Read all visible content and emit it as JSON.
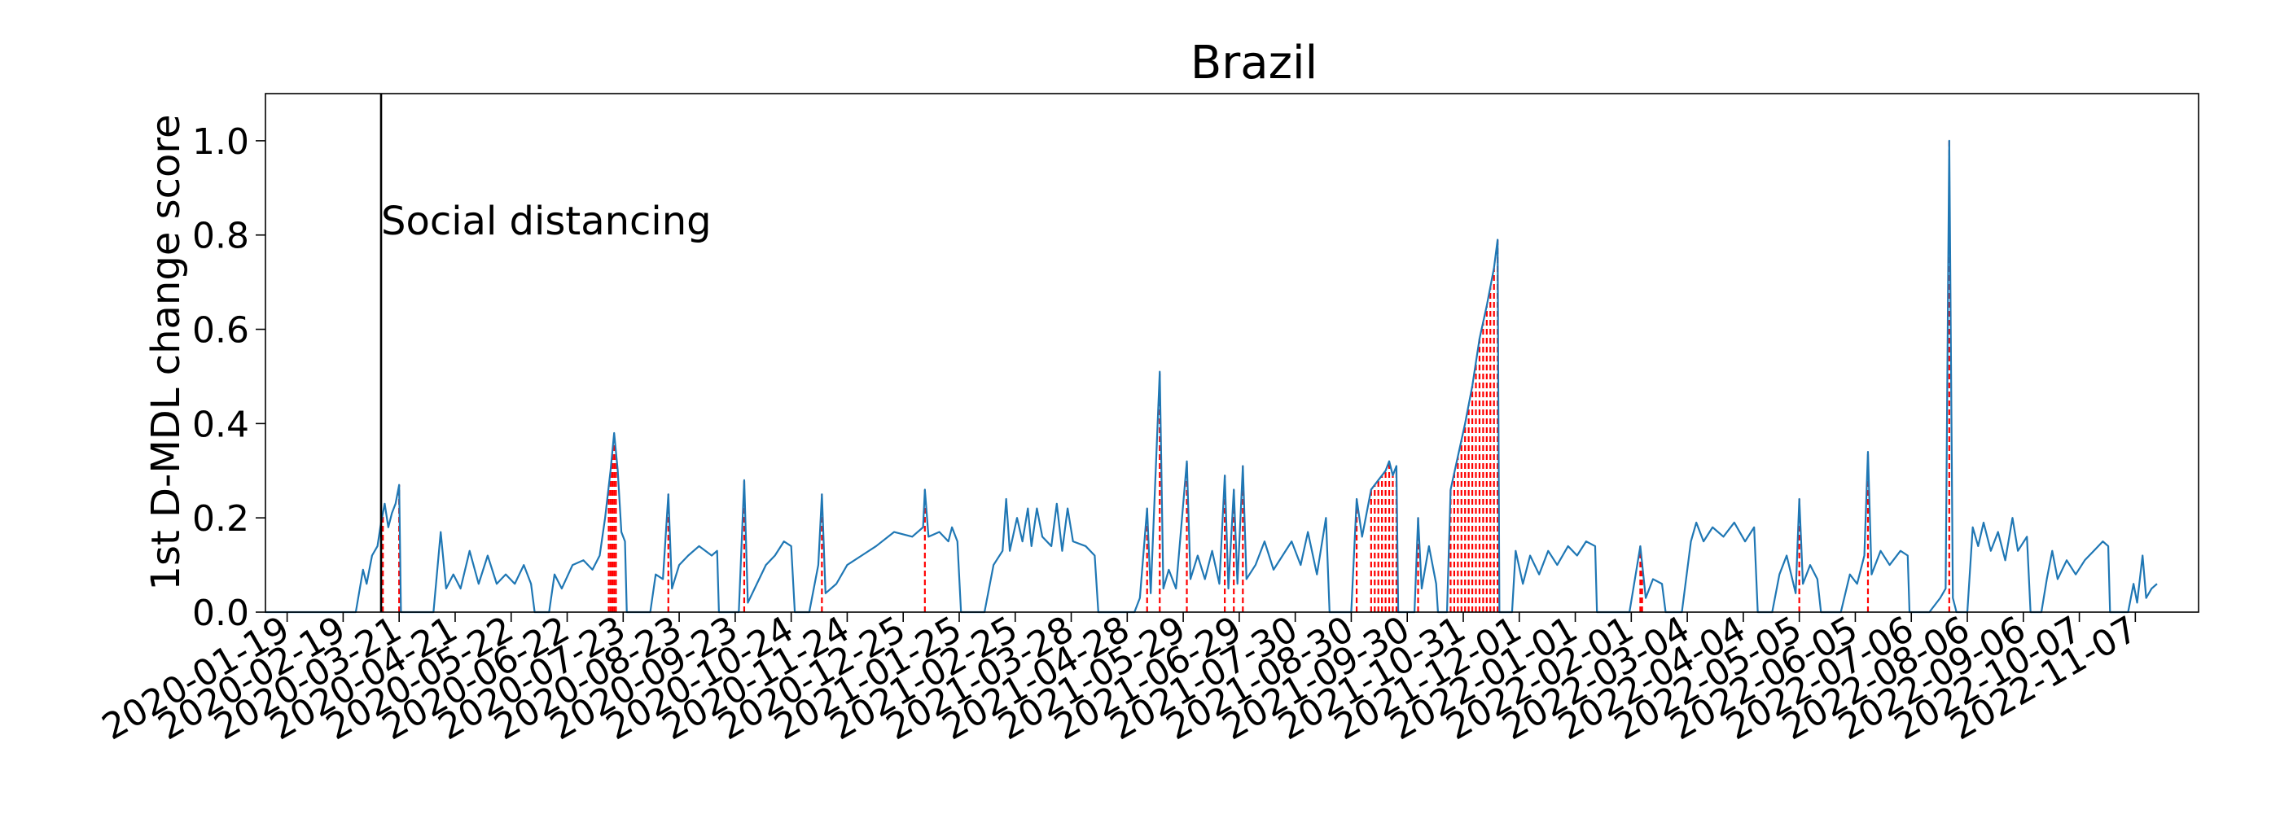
{
  "chart_data": {
    "type": "line",
    "title": "Brazil",
    "xlabel": "",
    "ylabel": "1st D-MDL change score",
    "xlim": [
      "2020-01-07",
      "2022-12-12"
    ],
    "ylim": [
      0,
      1.1
    ],
    "grid": false,
    "x_ticks": [
      "2020-01-19",
      "2020-02-19",
      "2020-03-21",
      "2020-04-21",
      "2020-05-22",
      "2020-06-22",
      "2020-07-23",
      "2020-08-23",
      "2020-09-23",
      "2020-10-24",
      "2020-11-24",
      "2020-12-25",
      "2021-01-25",
      "2021-02-25",
      "2021-03-28",
      "2021-04-28",
      "2021-05-29",
      "2021-06-29",
      "2021-07-30",
      "2021-08-30",
      "2021-09-30",
      "2021-10-31",
      "2021-12-01",
      "2022-01-01",
      "2022-02-01",
      "2022-03-04",
      "2022-04-04",
      "2022-05-05",
      "2022-06-05",
      "2022-07-06",
      "2022-08-06",
      "2022-09-06",
      "2022-10-07",
      "2022-11-07"
    ],
    "y_ticks": [
      "0.0",
      "0.2",
      "0.4",
      "0.6",
      "0.8",
      "1.0"
    ],
    "y_tick_values": [
      0,
      0.2,
      0.4,
      0.6,
      0.8,
      1.0
    ],
    "annotations": [
      {
        "type": "vline",
        "date": "2020-03-11",
        "label": "Social distancing",
        "color": "#000000"
      }
    ],
    "colors": {
      "series": "#1f77b4",
      "change_alarm": "#ff0000"
    },
    "series": [
      {
        "values": [
          [
            "2020-01-07",
            0
          ],
          [
            "2020-02-19",
            0
          ],
          [
            "2020-02-26",
            0
          ],
          [
            "2020-03-01",
            0.09
          ],
          [
            "2020-03-03",
            0.06
          ],
          [
            "2020-03-06",
            0.12
          ],
          [
            "2020-03-09",
            0.14
          ],
          [
            "2020-03-11",
            0.19
          ],
          [
            "2020-03-13",
            0.23
          ],
          [
            "2020-03-15",
            0.18
          ],
          [
            "2020-03-17",
            0.21
          ],
          [
            "2020-03-19",
            0.23
          ],
          [
            "2020-03-21",
            0.27
          ],
          [
            "2020-03-22",
            0
          ],
          [
            "2020-04-09",
            0
          ],
          [
            "2020-04-13",
            0.17
          ],
          [
            "2020-04-16",
            0.05
          ],
          [
            "2020-04-20",
            0.08
          ],
          [
            "2020-04-24",
            0.05
          ],
          [
            "2020-04-29",
            0.13
          ],
          [
            "2020-05-04",
            0.06
          ],
          [
            "2020-05-09",
            0.12
          ],
          [
            "2020-05-14",
            0.06
          ],
          [
            "2020-05-19",
            0.08
          ],
          [
            "2020-05-24",
            0.06
          ],
          [
            "2020-05-29",
            0.1
          ],
          [
            "2020-06-02",
            0.06
          ],
          [
            "2020-06-04",
            0
          ],
          [
            "2020-06-12",
            0
          ],
          [
            "2020-06-15",
            0.08
          ],
          [
            "2020-06-19",
            0.05
          ],
          [
            "2020-06-25",
            0.1
          ],
          [
            "2020-07-01",
            0.11
          ],
          [
            "2020-07-06",
            0.09
          ],
          [
            "2020-07-10",
            0.12
          ],
          [
            "2020-07-13",
            0.2
          ],
          [
            "2020-07-16",
            0.3
          ],
          [
            "2020-07-18",
            0.38
          ],
          [
            "2020-07-20",
            0.3
          ],
          [
            "2020-07-22",
            0.17
          ],
          [
            "2020-07-24",
            0.15
          ],
          [
            "2020-07-25",
            0
          ],
          [
            "2020-08-07",
            0
          ],
          [
            "2020-08-10",
            0.08
          ],
          [
            "2020-08-14",
            0.07
          ],
          [
            "2020-08-17",
            0.25
          ],
          [
            "2020-08-19",
            0.05
          ],
          [
            "2020-08-23",
            0.1
          ],
          [
            "2020-08-28",
            0.12
          ],
          [
            "2020-09-03",
            0.14
          ],
          [
            "2020-09-10",
            0.12
          ],
          [
            "2020-09-13",
            0.13
          ],
          [
            "2020-09-14",
            0
          ],
          [
            "2020-09-25",
            0
          ],
          [
            "2020-09-28",
            0.28
          ],
          [
            "2020-09-30",
            0.02
          ],
          [
            "2020-10-05",
            0.06
          ],
          [
            "2020-10-10",
            0.1
          ],
          [
            "2020-10-15",
            0.12
          ],
          [
            "2020-10-20",
            0.15
          ],
          [
            "2020-10-24",
            0.14
          ],
          [
            "2020-10-26",
            0
          ],
          [
            "2020-11-03",
            0
          ],
          [
            "2020-11-08",
            0.1
          ],
          [
            "2020-11-10",
            0.25
          ],
          [
            "2020-11-12",
            0.04
          ],
          [
            "2020-11-18",
            0.06
          ],
          [
            "2020-11-24",
            0.1
          ],
          [
            "2020-12-02",
            0.12
          ],
          [
            "2020-12-10",
            0.14
          ],
          [
            "2020-12-20",
            0.17
          ],
          [
            "2020-12-30",
            0.16
          ],
          [
            "2021-01-05",
            0.18
          ],
          [
            "2021-01-06",
            0.26
          ],
          [
            "2021-01-08",
            0.16
          ],
          [
            "2021-01-14",
            0.17
          ],
          [
            "2021-01-19",
            0.15
          ],
          [
            "2021-01-21",
            0.18
          ],
          [
            "2021-01-24",
            0.15
          ],
          [
            "2021-01-26",
            0
          ],
          [
            "2021-02-08",
            0
          ],
          [
            "2021-02-13",
            0.1
          ],
          [
            "2021-02-18",
            0.13
          ],
          [
            "2021-02-20",
            0.24
          ],
          [
            "2021-02-22",
            0.13
          ],
          [
            "2021-02-26",
            0.2
          ],
          [
            "2021-03-01",
            0.15
          ],
          [
            "2021-03-04",
            0.22
          ],
          [
            "2021-03-06",
            0.14
          ],
          [
            "2021-03-09",
            0.22
          ],
          [
            "2021-03-12",
            0.16
          ],
          [
            "2021-03-17",
            0.14
          ],
          [
            "2021-03-20",
            0.23
          ],
          [
            "2021-03-23",
            0.13
          ],
          [
            "2021-03-26",
            0.22
          ],
          [
            "2021-03-29",
            0.15
          ],
          [
            "2021-04-05",
            0.14
          ],
          [
            "2021-04-10",
            0.12
          ],
          [
            "2021-04-12",
            0
          ],
          [
            "2021-05-02",
            0
          ],
          [
            "2021-05-05",
            0.03
          ],
          [
            "2021-05-09",
            0.22
          ],
          [
            "2021-05-11",
            0.04
          ],
          [
            "2021-05-16",
            0.51
          ],
          [
            "2021-05-18",
            0.05
          ],
          [
            "2021-05-21",
            0.09
          ],
          [
            "2021-05-25",
            0.05
          ],
          [
            "2021-05-31",
            0.32
          ],
          [
            "2021-06-02",
            0.07
          ],
          [
            "2021-06-06",
            0.12
          ],
          [
            "2021-06-10",
            0.07
          ],
          [
            "2021-06-14",
            0.13
          ],
          [
            "2021-06-18",
            0.06
          ],
          [
            "2021-06-21",
            0.29
          ],
          [
            "2021-06-23",
            0.05
          ],
          [
            "2021-06-26",
            0.26
          ],
          [
            "2021-06-28",
            0.06
          ],
          [
            "2021-07-01",
            0.31
          ],
          [
            "2021-07-03",
            0.07
          ],
          [
            "2021-07-08",
            0.1
          ],
          [
            "2021-07-13",
            0.15
          ],
          [
            "2021-07-18",
            0.09
          ],
          [
            "2021-07-23",
            0.12
          ],
          [
            "2021-07-28",
            0.15
          ],
          [
            "2021-08-02",
            0.1
          ],
          [
            "2021-08-06",
            0.17
          ],
          [
            "2021-08-11",
            0.08
          ],
          [
            "2021-08-16",
            0.2
          ],
          [
            "2021-08-18",
            0
          ],
          [
            "2021-08-30",
            0
          ],
          [
            "2021-09-02",
            0.24
          ],
          [
            "2021-09-05",
            0.16
          ],
          [
            "2021-09-10",
            0.26
          ],
          [
            "2021-09-14",
            0.28
          ],
          [
            "2021-09-18",
            0.3
          ],
          [
            "2021-09-20",
            0.32
          ],
          [
            "2021-09-22",
            0.29
          ],
          [
            "2021-09-24",
            0.31
          ],
          [
            "2021-09-25",
            0
          ],
          [
            "2021-10-04",
            0
          ],
          [
            "2021-10-06",
            0.2
          ],
          [
            "2021-10-08",
            0.05
          ],
          [
            "2021-10-12",
            0.14
          ],
          [
            "2021-10-16",
            0.06
          ],
          [
            "2021-10-17",
            0
          ],
          [
            "2021-10-22",
            0
          ],
          [
            "2021-10-24",
            0.26
          ],
          [
            "2021-10-28",
            0.33
          ],
          [
            "2021-11-01",
            0.4
          ],
          [
            "2021-11-05",
            0.48
          ],
          [
            "2021-11-09",
            0.58
          ],
          [
            "2021-11-13",
            0.65
          ],
          [
            "2021-11-17",
            0.73
          ],
          [
            "2021-11-19",
            0.79
          ],
          [
            "2021-11-20",
            0
          ],
          [
            "2021-11-27",
            0
          ],
          [
            "2021-11-29",
            0.13
          ],
          [
            "2021-12-03",
            0.06
          ],
          [
            "2021-12-07",
            0.12
          ],
          [
            "2021-12-12",
            0.08
          ],
          [
            "2021-12-17",
            0.13
          ],
          [
            "2021-12-22",
            0.1
          ],
          [
            "2021-12-28",
            0.14
          ],
          [
            "2022-01-02",
            0.12
          ],
          [
            "2022-01-07",
            0.15
          ],
          [
            "2022-01-12",
            0.14
          ],
          [
            "2022-01-13",
            0
          ],
          [
            "2022-01-31",
            0
          ],
          [
            "2022-02-06",
            0.14
          ],
          [
            "2022-02-09",
            0.03
          ],
          [
            "2022-02-13",
            0.07
          ],
          [
            "2022-02-18",
            0.06
          ],
          [
            "2022-02-20",
            0
          ],
          [
            "2022-03-01",
            0
          ],
          [
            "2022-03-06",
            0.15
          ],
          [
            "2022-03-09",
            0.19
          ],
          [
            "2022-03-13",
            0.15
          ],
          [
            "2022-03-18",
            0.18
          ],
          [
            "2022-03-24",
            0.16
          ],
          [
            "2022-03-30",
            0.19
          ],
          [
            "2022-04-05",
            0.15
          ],
          [
            "2022-04-10",
            0.18
          ],
          [
            "2022-04-12",
            0
          ],
          [
            "2022-04-20",
            0
          ],
          [
            "2022-04-24",
            0.08
          ],
          [
            "2022-04-28",
            0.12
          ],
          [
            "2022-05-03",
            0.04
          ],
          [
            "2022-05-05",
            0.24
          ],
          [
            "2022-05-07",
            0.06
          ],
          [
            "2022-05-11",
            0.1
          ],
          [
            "2022-05-15",
            0.07
          ],
          [
            "2022-05-17",
            0
          ],
          [
            "2022-05-28",
            0
          ],
          [
            "2022-06-02",
            0.08
          ],
          [
            "2022-06-06",
            0.06
          ],
          [
            "2022-06-10",
            0.12
          ],
          [
            "2022-06-12",
            0.34
          ],
          [
            "2022-06-14",
            0.08
          ],
          [
            "2022-06-19",
            0.13
          ],
          [
            "2022-06-24",
            0.1
          ],
          [
            "2022-06-30",
            0.13
          ],
          [
            "2022-07-04",
            0.12
          ],
          [
            "2022-07-05",
            0
          ],
          [
            "2022-07-16",
            0
          ],
          [
            "2022-07-22",
            0.03
          ],
          [
            "2022-07-25",
            0.05
          ],
          [
            "2022-07-27",
            1.0
          ],
          [
            "2022-07-29",
            0.03
          ],
          [
            "2022-07-31",
            0
          ],
          [
            "2022-08-06",
            0
          ],
          [
            "2022-08-09",
            0.18
          ],
          [
            "2022-08-12",
            0.14
          ],
          [
            "2022-08-15",
            0.19
          ],
          [
            "2022-08-19",
            0.13
          ],
          [
            "2022-08-23",
            0.17
          ],
          [
            "2022-08-27",
            0.11
          ],
          [
            "2022-08-31",
            0.2
          ],
          [
            "2022-09-03",
            0.13
          ],
          [
            "2022-09-08",
            0.16
          ],
          [
            "2022-09-10",
            0
          ],
          [
            "2022-09-16",
            0
          ],
          [
            "2022-09-19",
            0.07
          ],
          [
            "2022-09-22",
            0.13
          ],
          [
            "2022-09-25",
            0.07
          ],
          [
            "2022-09-30",
            0.11
          ],
          [
            "2022-10-05",
            0.08
          ],
          [
            "2022-10-10",
            0.11
          ],
          [
            "2022-10-15",
            0.13
          ],
          [
            "2022-10-20",
            0.15
          ],
          [
            "2022-10-23",
            0.14
          ],
          [
            "2022-10-24",
            0
          ],
          [
            "2022-11-03",
            0
          ],
          [
            "2022-11-06",
            0.06
          ],
          [
            "2022-11-08",
            0.02
          ],
          [
            "2022-11-11",
            0.12
          ],
          [
            "2022-11-13",
            0.03
          ],
          [
            "2022-11-16",
            0.05
          ],
          [
            "2022-11-19",
            0.06
          ]
        ]
      }
    ],
    "change_alarm_dates": [
      "2020-03-12",
      "2020-03-21",
      "2020-07-15",
      "2020-07-16",
      "2020-07-17",
      "2020-07-18",
      "2020-07-19",
      "2020-08-17",
      "2020-09-28",
      "2020-11-10",
      "2021-01-06",
      "2021-05-09",
      "2021-05-16",
      "2021-05-31",
      "2021-06-21",
      "2021-06-26",
      "2021-07-01",
      "2021-09-02",
      "2021-09-10",
      "2021-09-12",
      "2021-09-14",
      "2021-09-16",
      "2021-09-18",
      "2021-09-20",
      "2021-09-22",
      "2021-09-24",
      "2021-10-06",
      "2021-10-24",
      "2021-10-26",
      "2021-10-28",
      "2021-10-30",
      "2021-11-01",
      "2021-11-03",
      "2021-11-05",
      "2021-11-07",
      "2021-11-09",
      "2021-11-11",
      "2021-11-13",
      "2021-11-15",
      "2021-11-17",
      "2021-11-19",
      "2022-02-06",
      "2022-02-07",
      "2022-05-05",
      "2022-06-12",
      "2022-07-27"
    ]
  }
}
